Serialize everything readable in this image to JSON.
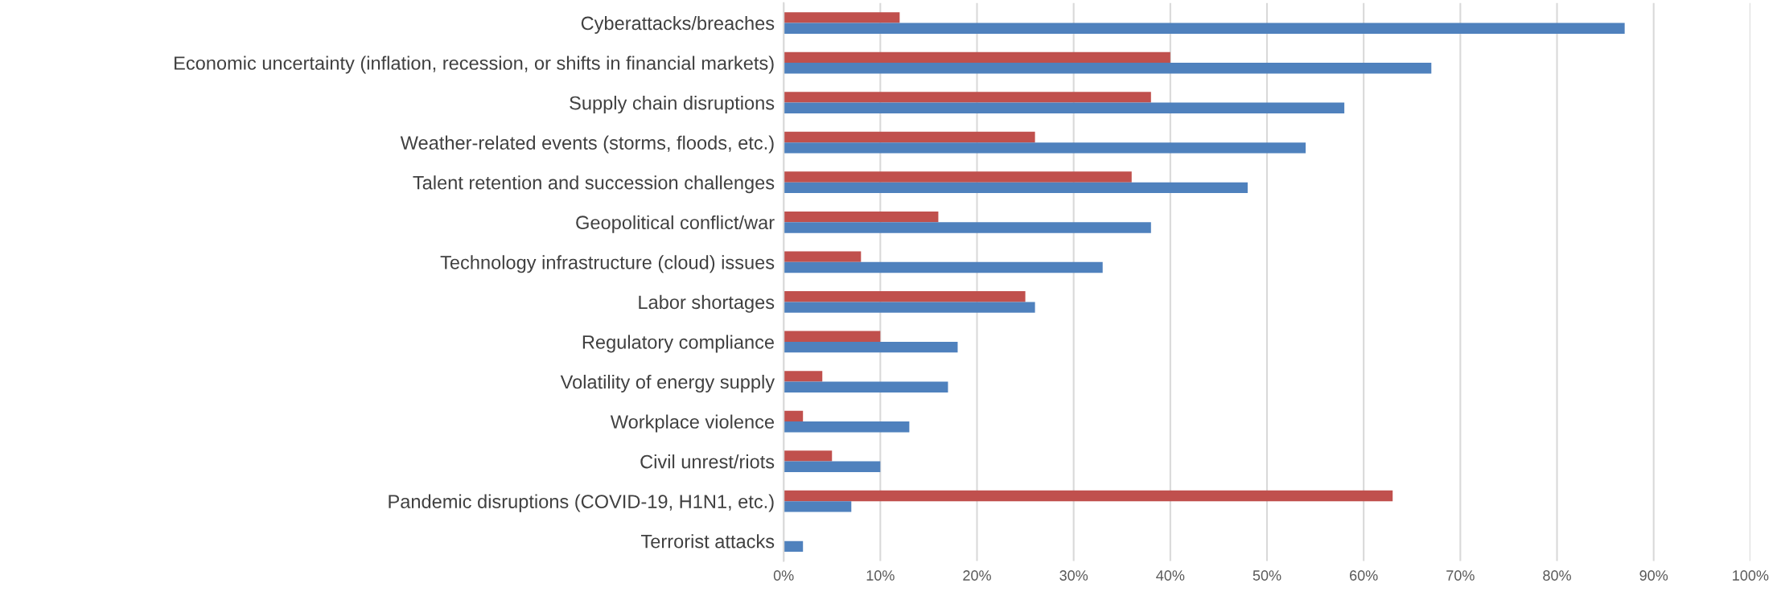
{
  "chart_data": {
    "type": "bar",
    "orientation": "horizontal",
    "categories": [
      "Cyberattacks/breaches",
      "Economic uncertainty (inflation, recession, or shifts in financial markets)",
      "Supply chain disruptions",
      "Weather-related events (storms, floods, etc.)",
      "Talent retention and succession challenges",
      "Geopolitical conflict/war",
      "Technology infrastructure (cloud) issues",
      "Labor shortages",
      "Regulatory compliance",
      "Volatility of energy supply",
      "Workplace violence",
      "Civil unrest/riots",
      "Pandemic disruptions (COVID-19, H1N1, etc.)",
      "Terrorist attacks"
    ],
    "series": [
      {
        "color": "#c0504d",
        "values": [
          12,
          40,
          38,
          26,
          36,
          16,
          8,
          25,
          10,
          4,
          2,
          5,
          63,
          0
        ]
      },
      {
        "color": "#4f81bd",
        "values": [
          87,
          67,
          58,
          54,
          48,
          38,
          33,
          26,
          18,
          17,
          13,
          10,
          7,
          2
        ]
      }
    ],
    "xlim": [
      0,
      100
    ],
    "xticks": [
      {
        "value": 0,
        "label": "0%"
      },
      {
        "value": 10,
        "label": "10%"
      },
      {
        "value": 20,
        "label": "20%"
      },
      {
        "value": 30,
        "label": "30%"
      },
      {
        "value": 40,
        "label": "40%"
      },
      {
        "value": 50,
        "label": "50%"
      },
      {
        "value": 60,
        "label": "60%"
      },
      {
        "value": 70,
        "label": "70%"
      },
      {
        "value": 80,
        "label": "80%"
      },
      {
        "value": 90,
        "label": "90%"
      },
      {
        "value": 100,
        "label": "100%"
      }
    ],
    "grid": "x"
  }
}
